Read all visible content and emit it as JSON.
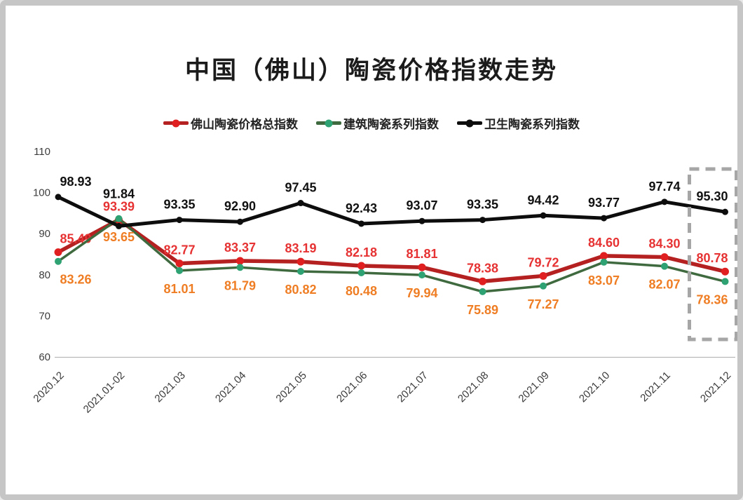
{
  "frame": {
    "border_color": "#c6c6c6",
    "background": "#ffffff"
  },
  "chart_data": {
    "type": "line",
    "title": "中国（佛山）陶瓷价格指数走势",
    "categories": [
      "2020.12",
      "2021.01-02",
      "2021.03",
      "2021.04",
      "2021.05",
      "2021.06",
      "2021.07",
      "2021.08",
      "2021.09",
      "2021.10",
      "2021.11",
      "2021.12"
    ],
    "series": [
      {
        "name": "佛山陶瓷价格总指数",
        "values": [
          85.49,
          93.39,
          82.77,
          83.37,
          83.19,
          82.18,
          81.81,
          78.38,
          79.72,
          84.6,
          84.3,
          80.78
        ],
        "line_color": "#b52020",
        "marker_color": "#e02020",
        "label_color": "#e63232",
        "label_position": "above"
      },
      {
        "name": "建筑陶瓷系列指数",
        "values": [
          83.26,
          93.65,
          81.01,
          81.79,
          80.82,
          80.48,
          79.94,
          75.89,
          77.27,
          83.07,
          82.07,
          78.36
        ],
        "line_color": "#3f6a3f",
        "marker_color": "#2fa273",
        "label_color": "#ef7d23",
        "label_position": "below"
      },
      {
        "name": "卫生陶瓷系列指数",
        "values": [
          98.93,
          91.84,
          93.35,
          92.9,
          97.45,
          92.43,
          93.07,
          93.35,
          94.42,
          93.77,
          97.74,
          95.3
        ],
        "line_color": "#0d0d0d",
        "marker_color": "#0d0d0d",
        "label_color": "#111111",
        "label_position": "above",
        "label_dy_overrides": {
          "1": -40
        }
      }
    ],
    "ylim": [
      60,
      110
    ],
    "yticks": [
      60,
      70,
      80,
      90,
      100,
      110
    ],
    "grid": false,
    "legend_position": "top",
    "axis_color": "#b8b8b8",
    "tick_label_color": "#3d3d3d",
    "highlight": {
      "category": "2021.12",
      "type": "dashed-box",
      "color": "#a6a6a6"
    }
  }
}
